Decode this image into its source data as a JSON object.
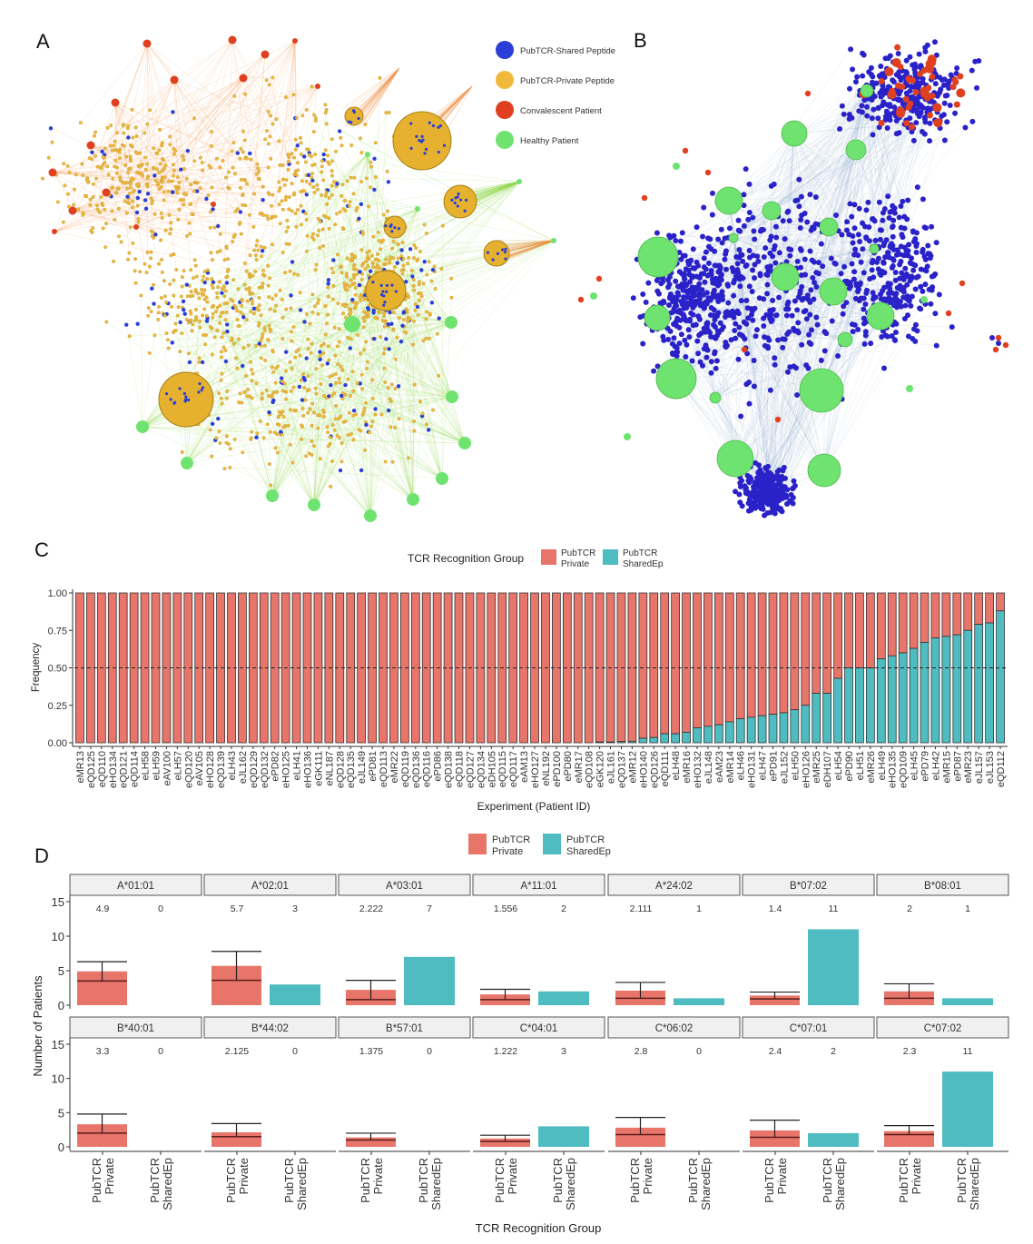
{
  "panels": {
    "a": "A",
    "b": "B",
    "c": "C",
    "d": "D"
  },
  "network_legend": [
    {
      "label": "PubTCR-Shared Peptide",
      "color": "#2b3fd6"
    },
    {
      "label": "PubTCR-Private Peptide",
      "color": "#f0b93a"
    },
    {
      "label": "Convalescent Patient",
      "color": "#e0401f"
    },
    {
      "label": "Healthy Patient",
      "color": "#6fe36f"
    }
  ],
  "colors": {
    "private": "#e8756a",
    "shared": "#4fbcc1",
    "edge_orange": "#f08a3c",
    "edge_green": "#8fd64a",
    "edge_blue": "#8aa6c8"
  },
  "chart_data": [
    {
      "type": "bar",
      "stacked": true,
      "legend_title": "TCR Recognition Group",
      "legend_position": "top",
      "xlabel": "Experiment (Patient ID)",
      "ylabel": "Frequency",
      "ylim": [
        0,
        1
      ],
      "yticks": [
        "0.00",
        "0.25",
        "0.50",
        "0.75",
        "1.00"
      ],
      "reference_line": 0.5,
      "categories": [
        "eMR13",
        "eQD125",
        "eQD110",
        "eHO134",
        "eQD121",
        "eQD114",
        "eLH58",
        "eLH59",
        "eAV100",
        "eLH57",
        "eQD120",
        "eAV105",
        "eHO128",
        "eQD139",
        "eLH43",
        "eJL162",
        "eQD129",
        "eQD132",
        "ePD82",
        "eHO125",
        "eLH41",
        "eHO136",
        "eGK111",
        "eNL187",
        "eQD128",
        "eQD135",
        "eJL149",
        "ePD81",
        "eQD113",
        "eMR22",
        "eQD119",
        "eQD136",
        "eQD116",
        "ePD86",
        "eQD138",
        "eQD118",
        "eQD127",
        "eQD134",
        "eDH105",
        "eQD115",
        "eQD117",
        "eAM13",
        "eHO127",
        "eNL192",
        "ePD100",
        "ePD80",
        "eMR17",
        "eQD108",
        "eGK120",
        "eJL161",
        "eQD137",
        "eMR12",
        "eHO140",
        "eQD126",
        "eQD111",
        "eLH48",
        "eMR16",
        "eHO132",
        "eJL148",
        "eAM23",
        "eMR14",
        "eLH46",
        "eHO131",
        "eLH47",
        "ePD91",
        "eJL152",
        "eLH50",
        "eHO126",
        "eMR25",
        "eDH107",
        "eLH54",
        "ePD90",
        "eLH51",
        "eMR26",
        "eLH49",
        "eHO135",
        "eQD109",
        "eLH45",
        "ePD79",
        "eLH42",
        "eMR15",
        "ePD87",
        "eMR23",
        "eJL157",
        "eJL153",
        "eQD112"
      ],
      "series": [
        {
          "name": "PubTCR Private",
          "values": [
            1,
            1,
            1,
            1,
            1,
            1,
            1,
            1,
            1,
            1,
            1,
            1,
            1,
            1,
            1,
            1,
            1,
            1,
            1,
            1,
            1,
            1,
            1,
            1,
            1,
            1,
            1,
            1,
            1,
            1,
            1,
            1,
            1,
            1,
            1,
            1,
            1,
            1,
            1,
            1,
            1,
            1,
            1,
            1,
            1,
            1,
            1,
            1,
            0.995,
            0.995,
            0.992,
            0.99,
            0.97,
            0.965,
            0.94,
            0.94,
            0.93,
            0.9,
            0.89,
            0.88,
            0.86,
            0.84,
            0.83,
            0.82,
            0.81,
            0.8,
            0.78,
            0.75,
            0.67,
            0.67,
            0.57,
            0.5,
            0.5,
            0.5,
            0.44,
            0.42,
            0.4,
            0.37,
            0.33,
            0.3,
            0.29,
            0.28,
            0.25,
            0.21,
            0.2,
            0.12
          ]
        },
        {
          "name": "PubTCR SharedEp",
          "values": [
            0,
            0,
            0,
            0,
            0,
            0,
            0,
            0,
            0,
            0,
            0,
            0,
            0,
            0,
            0,
            0,
            0,
            0,
            0,
            0,
            0,
            0,
            0,
            0,
            0,
            0,
            0,
            0,
            0,
            0,
            0,
            0,
            0,
            0,
            0,
            0,
            0,
            0,
            0,
            0,
            0,
            0,
            0,
            0,
            0,
            0,
            0,
            0,
            0.005,
            0.005,
            0.008,
            0.01,
            0.03,
            0.035,
            0.06,
            0.06,
            0.07,
            0.1,
            0.11,
            0.12,
            0.14,
            0.16,
            0.17,
            0.18,
            0.19,
            0.2,
            0.22,
            0.25,
            0.33,
            0.33,
            0.43,
            0.5,
            0.5,
            0.5,
            0.56,
            0.58,
            0.6,
            0.63,
            0.67,
            0.7,
            0.71,
            0.72,
            0.75,
            0.79,
            0.8,
            0.88
          ]
        }
      ]
    },
    {
      "type": "bar",
      "faceted": true,
      "legend_position": "top",
      "legend": [
        "PubTCR Private",
        "PubTCR SharedEp"
      ],
      "xlabel": "TCR Recognition Group",
      "ylabel": "Number of Patients",
      "ylim": [
        0,
        15
      ],
      "yticks": [
        "0",
        "5",
        "10",
        "15"
      ],
      "categories": [
        "PubTCR Private",
        "PubTCR SharedEp"
      ],
      "facets": [
        {
          "allele": "A*01:01",
          "private": 4.9,
          "private_label": "4.9",
          "private_median": 3.5,
          "private_upper": 6.3,
          "shared": 0,
          "shared_label": "0"
        },
        {
          "allele": "A*02:01",
          "private": 5.7,
          "private_label": "5.7",
          "private_median": 3.6,
          "private_upper": 7.8,
          "shared": 3,
          "shared_label": "3"
        },
        {
          "allele": "A*03:01",
          "private": 2.222,
          "private_label": "2.222",
          "private_median": 0.8,
          "private_upper": 3.6,
          "shared": 7,
          "shared_label": "7"
        },
        {
          "allele": "A*11:01",
          "private": 1.556,
          "private_label": "1.556",
          "private_median": 0.8,
          "private_upper": 2.3,
          "shared": 2,
          "shared_label": "2"
        },
        {
          "allele": "A*24:02",
          "private": 2.111,
          "private_label": "2.111",
          "private_median": 1.0,
          "private_upper": 3.3,
          "shared": 1,
          "shared_label": "1"
        },
        {
          "allele": "B*07:02",
          "private": 1.4,
          "private_label": "1.4",
          "private_median": 0.9,
          "private_upper": 1.9,
          "shared": 11,
          "shared_label": "11"
        },
        {
          "allele": "B*08:01",
          "private": 2,
          "private_label": "2",
          "private_median": 1.0,
          "private_upper": 3.1,
          "shared": 1,
          "shared_label": "1"
        },
        {
          "allele": "B*40:01",
          "private": 3.3,
          "private_label": "3.3",
          "private_median": 2.0,
          "private_upper": 4.8,
          "shared": 0,
          "shared_label": "0"
        },
        {
          "allele": "B*44:02",
          "private": 2.125,
          "private_label": "2.125",
          "private_median": 1.5,
          "private_upper": 3.4,
          "shared": 0,
          "shared_label": "0"
        },
        {
          "allele": "B*57:01",
          "private": 1.375,
          "private_label": "1.375",
          "private_median": 1.0,
          "private_upper": 2.0,
          "shared": 0,
          "shared_label": "0"
        },
        {
          "allele": "C*04:01",
          "private": 1.222,
          "private_label": "1.222",
          "private_median": 0.8,
          "private_upper": 1.7,
          "shared": 3,
          "shared_label": "3"
        },
        {
          "allele": "C*06:02",
          "private": 2.8,
          "private_label": "2.8",
          "private_median": 1.8,
          "private_upper": 4.3,
          "shared": 0,
          "shared_label": "0"
        },
        {
          "allele": "C*07:01",
          "private": 2.4,
          "private_label": "2.4",
          "private_median": 1.4,
          "private_upper": 3.9,
          "shared": 2,
          "shared_label": "2"
        },
        {
          "allele": "C*07:02",
          "private": 2.3,
          "private_label": "2.3",
          "private_median": 1.8,
          "private_upper": 3.1,
          "shared": 11,
          "shared_label": "11"
        }
      ]
    }
  ]
}
